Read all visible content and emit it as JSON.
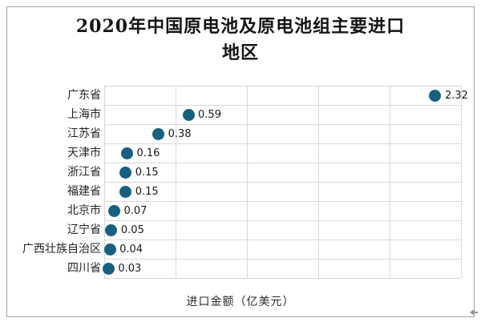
{
  "chart_data": {
    "type": "scatter",
    "title": "2020年中国原电池及原电池组主要进口地区",
    "title_lines": [
      "2020年中国原电池及原电池组主要进口",
      "地区"
    ],
    "categories": [
      "广东省",
      "上海市",
      "江苏省",
      "天津市",
      "浙江省",
      "福建省",
      "北京市",
      "辽宁省",
      "广西壮族自治区",
      "四川省"
    ],
    "values": [
      2.32,
      0.59,
      0.38,
      0.16,
      0.15,
      0.15,
      0.07,
      0.05,
      0.04,
      0.03
    ],
    "value_labels": [
      "2.32",
      "0.59",
      "0.38",
      "0.16",
      "0.15",
      "0.15",
      "0.07",
      "0.05",
      "0.04",
      "0.03"
    ],
    "xlabel": "进口金额（亿美元）",
    "ylabel": "",
    "xlim": [
      0,
      2.5
    ],
    "x_grid_step": 0.5,
    "grid": true,
    "legend": false,
    "orientation": "horizontal-categories",
    "marker_color": "#176080"
  },
  "colors": {
    "marker": "#176080",
    "gridline": "#d9d9d9",
    "frame_border": "#a3a3a3",
    "title_text": "#141414",
    "label_text": "#242424",
    "cursor": "#909090"
  }
}
